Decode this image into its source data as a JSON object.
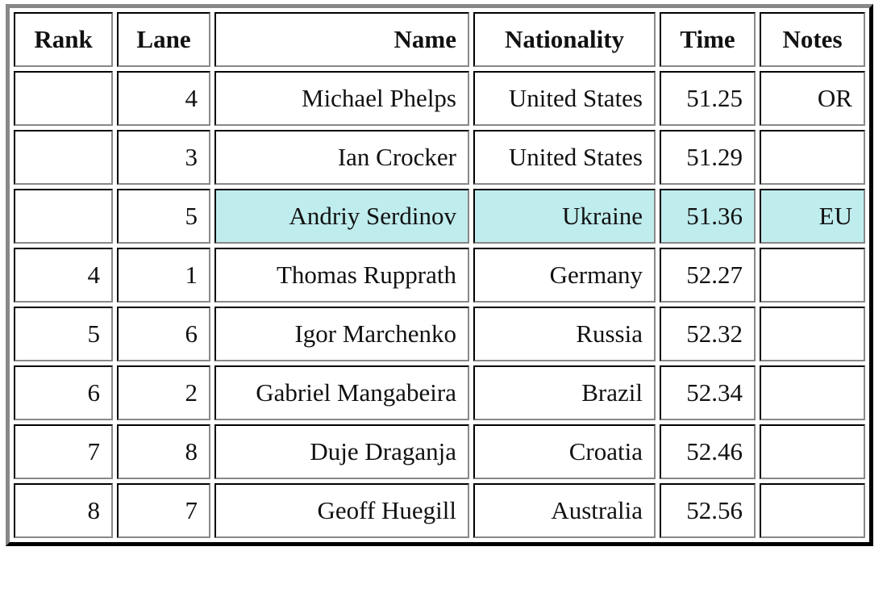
{
  "table": {
    "headers": [
      "Rank",
      "Lane",
      "Name",
      "Nationality",
      "Time",
      "Notes"
    ],
    "highlight_color": "#bfeced",
    "rows": [
      {
        "rank": "",
        "lane": "4",
        "name": "Michael Phelps",
        "nationality": "United States",
        "time": "51.25",
        "notes": "OR",
        "highlight": false
      },
      {
        "rank": "",
        "lane": "3",
        "name": "Ian Crocker",
        "nationality": "United States",
        "time": "51.29",
        "notes": "",
        "highlight": false
      },
      {
        "rank": "",
        "lane": "5",
        "name": "Andriy Serdinov",
        "nationality": "Ukraine",
        "time": "51.36",
        "notes": "EU",
        "highlight": true
      },
      {
        "rank": "4",
        "lane": "1",
        "name": "Thomas Rupprath",
        "nationality": "Germany",
        "time": "52.27",
        "notes": "",
        "highlight": false
      },
      {
        "rank": "5",
        "lane": "6",
        "name": "Igor Marchenko",
        "nationality": "Russia",
        "time": "52.32",
        "notes": "",
        "highlight": false
      },
      {
        "rank": "6",
        "lane": "2",
        "name": "Gabriel Mangabeira",
        "nationality": "Brazil",
        "time": "52.34",
        "notes": "",
        "highlight": false
      },
      {
        "rank": "7",
        "lane": "8",
        "name": "Duje Draganja",
        "nationality": "Croatia",
        "time": "52.46",
        "notes": "",
        "highlight": false
      },
      {
        "rank": "8",
        "lane": "7",
        "name": "Geoff Huegill",
        "nationality": "Australia",
        "time": "52.56",
        "notes": "",
        "highlight": false
      }
    ]
  }
}
